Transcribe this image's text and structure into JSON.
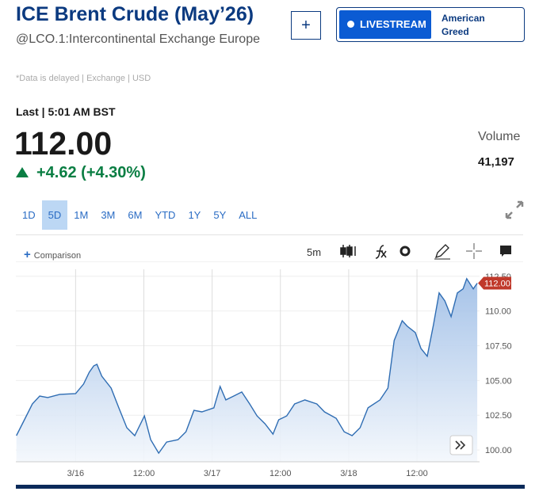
{
  "header": {
    "title": "ICE Brent Crude (May’26)",
    "symbol": "@LCO.1:Intercontinental Exchange Europe",
    "note": "*Data is delayed | Exchange | USD",
    "add_button": "+"
  },
  "livestream": {
    "label": "LIVESTREAM",
    "show": "American Greed"
  },
  "quote": {
    "last_label": "Last | 5:01 AM BST",
    "price": "112.00",
    "change": "+4.62 (+4.30%)",
    "volume_label": "Volume",
    "volume": "41,197"
  },
  "periods": [
    "1D",
    "5D",
    "1M",
    "3M",
    "6M",
    "YTD",
    "1Y",
    "5Y",
    "ALL"
  ],
  "selected_period": 1,
  "toolbar": {
    "comparison_icon": "+",
    "comparison": "Comparison",
    "interval": "5m"
  },
  "chart_data": {
    "type": "area",
    "color": "#2f6db3",
    "x": [
      -10.4,
      -9.0,
      -7.6,
      -6.3,
      -4.9,
      -2.8,
      0,
      1.4,
      2.4,
      3.2,
      3.75,
      4.6,
      6.25,
      7.6,
      9.0,
      10.4,
      12.1,
      13.2,
      14.6,
      16.0,
      18.0,
      19.4,
      20.8,
      22.2,
      24.3,
      25.4,
      26.4,
      27.8,
      29.2,
      30.6,
      31.9,
      33.3,
      34.7,
      35.7,
      37.1,
      38.5,
      40.3,
      42.4,
      43.75,
      45.8,
      47.2,
      48.6,
      50.0,
      51.4,
      53.5,
      54.9,
      56.0,
      57.4,
      58.3,
      59.7,
      60.7,
      61.8,
      62.9,
      63.9,
      64.9,
      66.0,
      67.1,
      68.1,
      68.75,
      69.9,
      70.6
    ],
    "values": [
      101.03,
      102.17,
      103.31,
      103.88,
      103.77,
      104.0,
      104.05,
      104.74,
      105.59,
      106.05,
      106.16,
      105.31,
      104.45,
      103.03,
      101.6,
      101.03,
      102.45,
      100.74,
      99.77,
      100.57,
      100.74,
      101.31,
      102.85,
      102.74,
      103.03,
      104.57,
      103.6,
      103.88,
      104.17,
      103.31,
      102.45,
      101.88,
      101.14,
      102.17,
      102.45,
      103.31,
      103.6,
      103.31,
      102.74,
      102.28,
      101.31,
      101.03,
      101.6,
      103.03,
      103.6,
      104.45,
      107.88,
      109.3,
      108.9,
      108.45,
      107.3,
      106.74,
      109.02,
      111.3,
      110.73,
      109.59,
      111.3,
      111.59,
      112.33,
      111.59,
      112.0
    ],
    "xlim": [
      -10.5,
      71
    ],
    "xticks": [
      {
        "value": 0,
        "label": "3/16"
      },
      {
        "value": 12,
        "label": "12:00"
      },
      {
        "value": 24,
        "label": "3/17"
      },
      {
        "value": 36,
        "label": "12:00"
      },
      {
        "value": 48,
        "label": "3/18"
      },
      {
        "value": 60,
        "label": "12:00"
      }
    ],
    "ylim": [
      99.15,
      113
    ],
    "yticks": [
      {
        "value": 100,
        "label": "100.00"
      },
      {
        "value": 102.5,
        "label": "102.50"
      },
      {
        "value": 105,
        "label": "105.00"
      },
      {
        "value": 107.5,
        "label": "107.50"
      },
      {
        "value": 110,
        "label": "110.00"
      },
      {
        "value": 112.5,
        "label": "112.50"
      }
    ],
    "grid": true,
    "last_color": "#c0392b"
  }
}
